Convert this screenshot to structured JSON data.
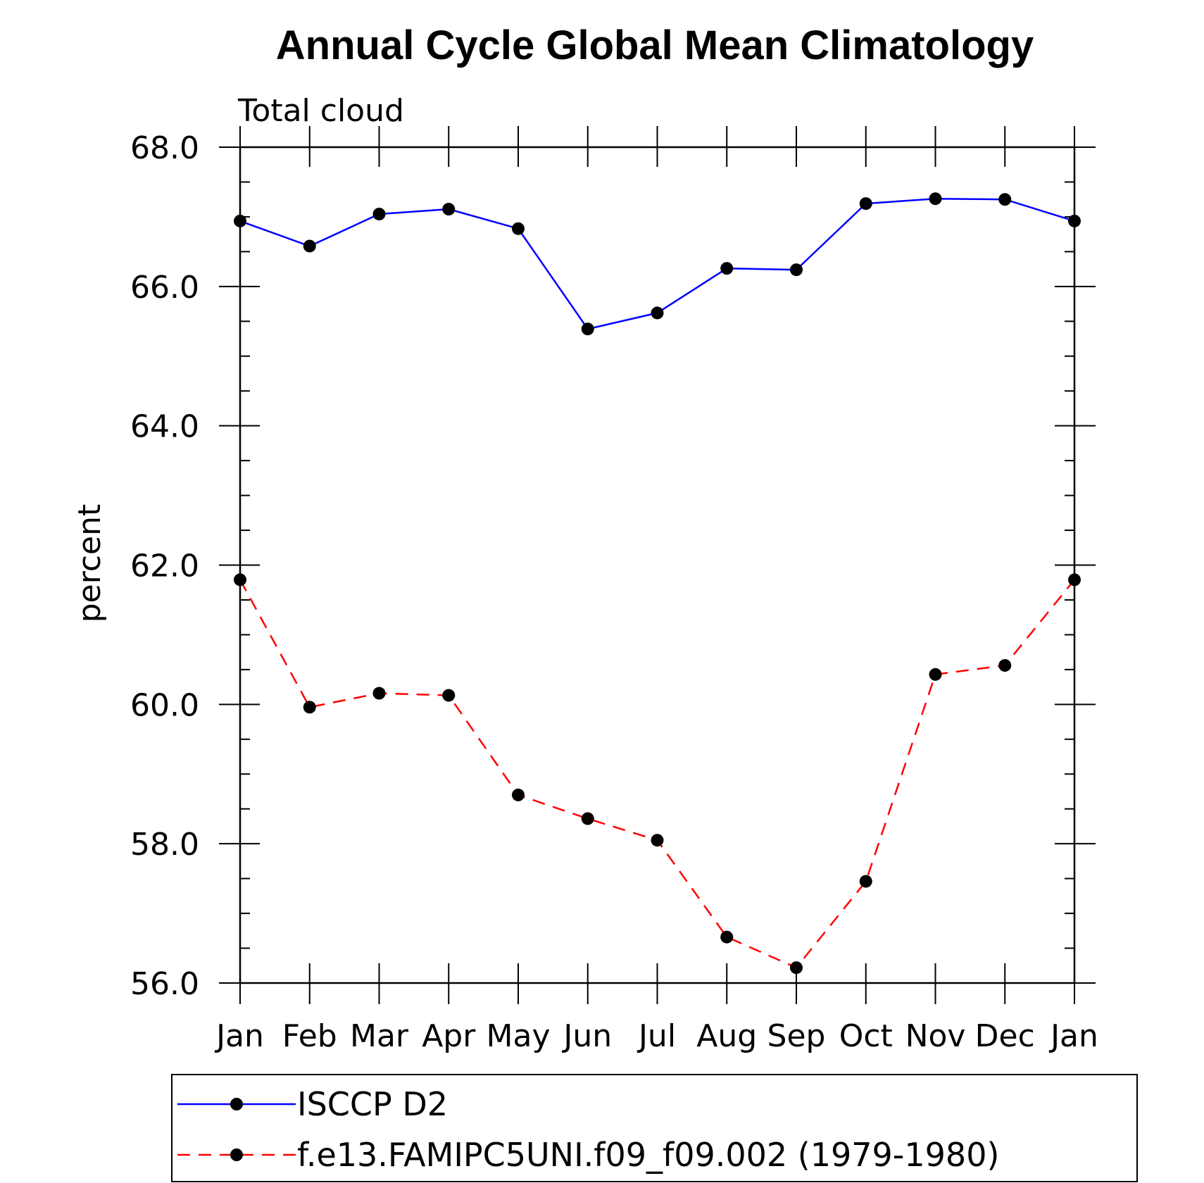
{
  "chart_data": {
    "type": "line",
    "title": "Annual Cycle Global Mean Climatology",
    "subtitle": "Total cloud",
    "ylabel": "percent",
    "xlabel": "",
    "categories": [
      "Jan",
      "Feb",
      "Mar",
      "Apr",
      "May",
      "Jun",
      "Jul",
      "Aug",
      "Sep",
      "Oct",
      "Nov",
      "Dec",
      "Jan"
    ],
    "ylim": [
      56.0,
      68.0
    ],
    "yticks": [
      "56.0",
      "58.0",
      "60.0",
      "62.0",
      "64.0",
      "66.0",
      "68.0"
    ],
    "grid": false,
    "legend_position": "bottom",
    "series": [
      {
        "name": "ISCCP D2",
        "color": "#0000ff",
        "line_style": "solid",
        "marker": "filled-circle",
        "values": [
          66.94,
          66.58,
          67.04,
          67.11,
          66.83,
          65.39,
          65.62,
          66.26,
          66.24,
          67.19,
          67.26,
          67.25,
          66.94
        ]
      },
      {
        "name": "f.e13.FAMIPC5UNI.f09_f09.002 (1979-1980)",
        "color": "#ff0000",
        "line_style": "dashed",
        "marker": "filled-circle",
        "values": [
          61.79,
          59.96,
          60.16,
          60.13,
          58.7,
          58.36,
          58.05,
          56.66,
          56.22,
          57.46,
          60.43,
          60.56,
          61.79
        ]
      }
    ]
  }
}
